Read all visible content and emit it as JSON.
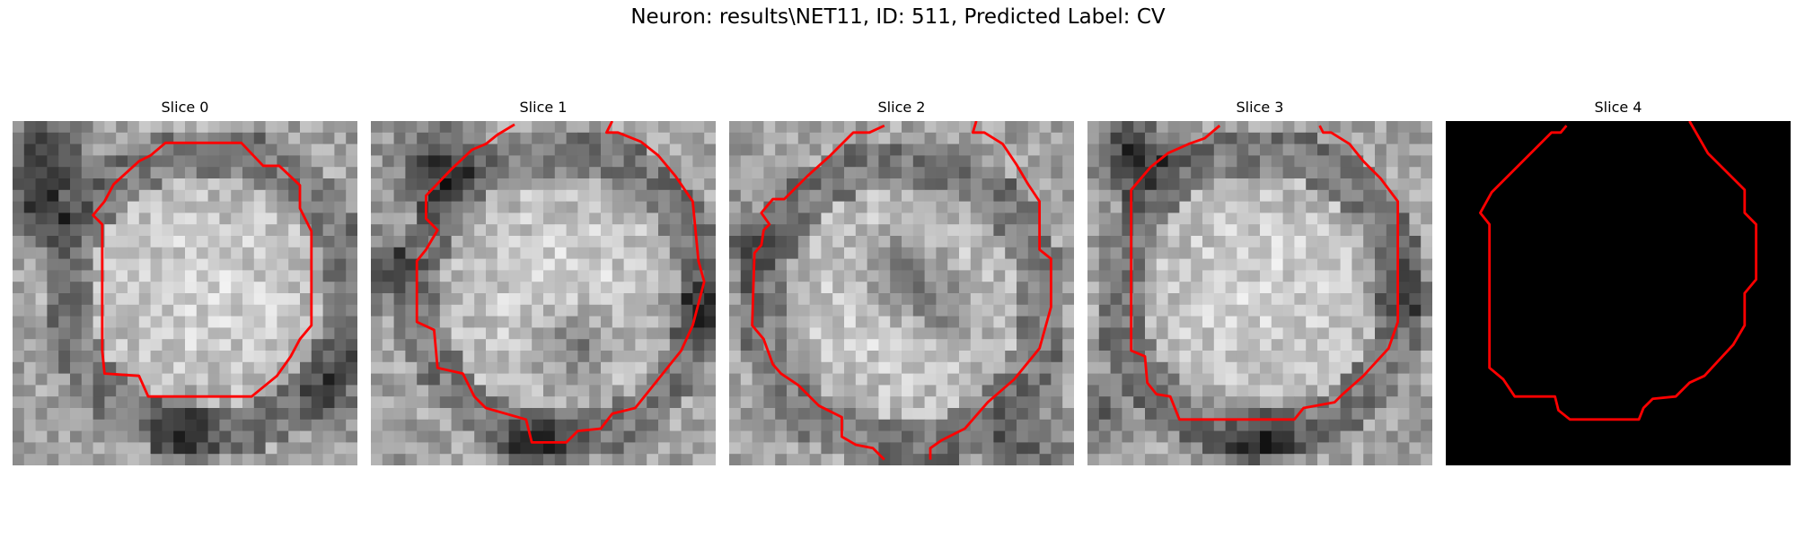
{
  "figure": {
    "title": "Neuron: results\\NET11, ID: 511, Predicted Label: CV"
  },
  "colors": {
    "background": "#ffffff",
    "contour": "#ff0000",
    "blank_slice": "#000000"
  },
  "panels": [
    {
      "title": "Slice 0",
      "image": "grayscale-micrograph",
      "contour": "red-outline"
    },
    {
      "title": "Slice 1",
      "image": "grayscale-micrograph",
      "contour": "red-outline"
    },
    {
      "title": "Slice 2",
      "image": "grayscale-micrograph",
      "contour": "red-outline"
    },
    {
      "title": "Slice 3",
      "image": "grayscale-micrograph",
      "contour": "red-outline"
    },
    {
      "title": "Slice 4",
      "image": "black-blank",
      "contour": "red-outline"
    }
  ]
}
